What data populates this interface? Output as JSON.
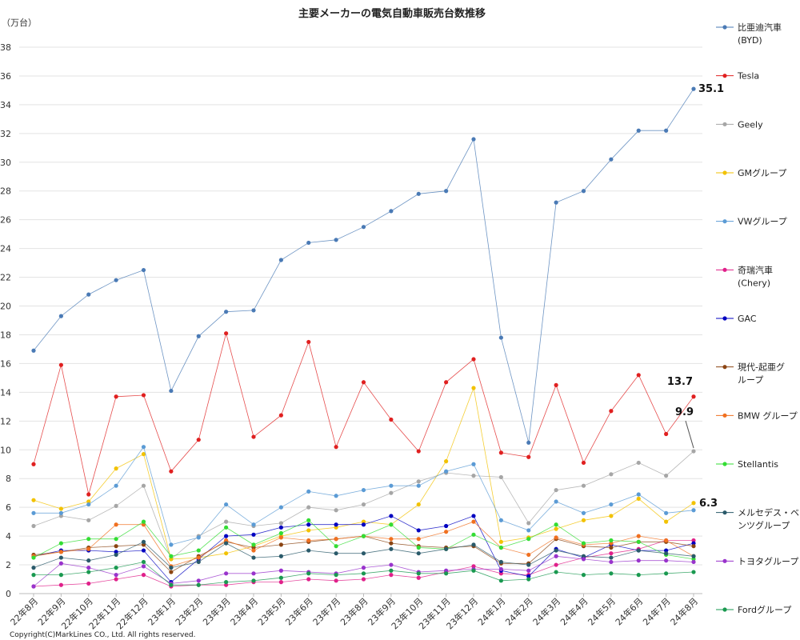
{
  "chart_data": {
    "type": "line",
    "title": "主要メーカーの電気自動車販売台数推移",
    "unit_label": "（万台）",
    "copyright": "Copyright(C)MarkLines CO., Ltd. All rights reserved.",
    "ylim": [
      0,
      38
    ],
    "yticks": [
      "0",
      "2",
      "4",
      "6",
      "8",
      "10",
      "12",
      "14",
      "16",
      "18",
      "20",
      "22",
      "24",
      "26",
      "28",
      "30",
      "32",
      "34",
      "36",
      "38"
    ],
    "grid": true,
    "legend_position": "right",
    "x": [
      "22年8月",
      "22年9月",
      "22年10月",
      "22年11月",
      "22年12月",
      "23年1月",
      "23年2月",
      "23年3月",
      "23年4月",
      "23年5月",
      "23年6月",
      "23年7月",
      "23年8月",
      "23年9月",
      "23年10月",
      "23年11月",
      "23年12月",
      "24年1月",
      "24年2月",
      "24年3月",
      "24年4月",
      "24年5月",
      "24年6月",
      "24年7月",
      "24年8月"
    ],
    "series": [
      {
        "name": "比亜迪汽車",
        "name2": "(BYD)",
        "color": "#4a7ab5",
        "values": [
          16.9,
          19.3,
          20.8,
          21.8,
          22.5,
          14.1,
          17.9,
          19.6,
          19.7,
          23.2,
          24.4,
          24.6,
          25.5,
          26.6,
          27.8,
          28.0,
          31.6,
          17.8,
          10.5,
          27.2,
          28.0,
          30.2,
          32.2,
          32.2,
          35.1
        ]
      },
      {
        "name": "Tesla",
        "name2": "",
        "color": "#e02020",
        "values": [
          9.0,
          15.9,
          6.9,
          13.7,
          13.8,
          8.5,
          10.7,
          18.1,
          10.9,
          12.4,
          17.5,
          10.2,
          14.7,
          12.1,
          9.9,
          14.7,
          16.3,
          9.8,
          9.5,
          14.5,
          9.1,
          12.7,
          15.2,
          11.1,
          13.7
        ]
      },
      {
        "name": "Geely",
        "name2": "",
        "color": "#a6a6a6",
        "values": [
          4.7,
          5.4,
          5.1,
          6.1,
          7.5,
          2.4,
          4.0,
          5.0,
          4.7,
          4.9,
          6.0,
          5.8,
          6.2,
          7.0,
          7.8,
          8.4,
          8.2,
          8.1,
          4.9,
          7.2,
          7.5,
          8.3,
          9.1,
          8.2,
          9.9
        ]
      },
      {
        "name": "GMグループ",
        "name2": "",
        "color": "#f2c200",
        "values": [
          6.5,
          5.9,
          6.4,
          8.7,
          9.7,
          2.4,
          2.5,
          2.8,
          3.3,
          4.0,
          4.4,
          4.6,
          5.0,
          4.8,
          6.2,
          9.2,
          14.3,
          3.6,
          3.9,
          4.5,
          5.1,
          5.4,
          6.6,
          5.0,
          6.3
        ]
      },
      {
        "name": "VWグループ",
        "name2": "",
        "color": "#5b9bd5",
        "values": [
          5.6,
          5.6,
          6.2,
          7.5,
          10.2,
          3.4,
          3.9,
          6.2,
          4.8,
          6.0,
          7.1,
          6.8,
          7.2,
          7.5,
          7.5,
          8.5,
          9.0,
          5.1,
          4.4,
          6.4,
          5.6,
          6.2,
          6.9,
          5.6,
          5.8
        ]
      },
      {
        "name": "奇瑞汽車",
        "name2": "(Chery)",
        "color": "#e0208a",
        "values": [
          0.5,
          0.6,
          0.7,
          1.0,
          1.3,
          0.5,
          0.6,
          0.6,
          0.8,
          0.8,
          1.0,
          0.9,
          1.0,
          1.3,
          1.1,
          1.5,
          1.9,
          1.4,
          1.3,
          2.0,
          2.5,
          2.8,
          3.1,
          3.7,
          3.7
        ]
      },
      {
        "name": "GAC",
        "name2": "",
        "color": "#0000c0",
        "values": [
          2.6,
          3.0,
          3.0,
          2.9,
          3.0,
          0.8,
          2.4,
          4.0,
          4.1,
          4.6,
          4.8,
          4.8,
          4.8,
          5.4,
          4.4,
          4.7,
          5.4,
          1.6,
          1.2,
          3.1,
          2.5,
          3.4,
          3.0,
          3.0,
          3.5
        ]
      },
      {
        "name": "現代-起亜グ",
        "name2": "ループ",
        "color": "#8b4513",
        "values": [
          2.7,
          2.9,
          3.2,
          3.3,
          3.4,
          1.5,
          2.6,
          3.6,
          3.2,
          3.4,
          3.6,
          3.8,
          4.0,
          3.5,
          3.3,
          3.2,
          3.3,
          2.1,
          2.1,
          3.8,
          3.3,
          3.2,
          3.6,
          3.6,
          3.3
        ]
      },
      {
        "name": "BMW グループ",
        "name2": "",
        "color": "#f07020",
        "values": [
          2.6,
          2.9,
          3.1,
          4.8,
          4.8,
          1.9,
          2.5,
          3.7,
          3.0,
          3.9,
          3.7,
          3.8,
          4.0,
          3.8,
          3.8,
          4.3,
          5.0,
          3.2,
          2.7,
          3.9,
          3.4,
          3.5,
          4.0,
          3.7,
          2.6
        ]
      },
      {
        "name": "Stellantis",
        "name2": "",
        "color": "#33dd33",
        "values": [
          2.5,
          3.5,
          3.8,
          3.8,
          5.0,
          2.6,
          3.0,
          4.6,
          3.4,
          4.2,
          5.1,
          3.3,
          4.0,
          4.8,
          3.2,
          3.1,
          4.1,
          3.2,
          3.8,
          4.8,
          3.5,
          3.7,
          3.6,
          2.7,
          2.4
        ]
      },
      {
        "name": "メルセデス・ベ",
        "name2": "ンツグループ",
        "color": "#2a5a6a",
        "values": [
          1.8,
          2.5,
          2.3,
          2.7,
          3.6,
          1.8,
          2.2,
          3.5,
          2.5,
          2.6,
          3.0,
          2.8,
          2.8,
          3.1,
          2.8,
          3.1,
          3.4,
          2.2,
          2.0,
          3.0,
          2.6,
          2.5,
          3.0,
          2.8,
          2.6
        ]
      },
      {
        "name": "トヨタグループ",
        "name2": "",
        "color": "#9933cc",
        "values": [
          0.5,
          2.1,
          1.8,
          1.3,
          1.9,
          0.7,
          0.9,
          1.4,
          1.4,
          1.6,
          1.5,
          1.4,
          1.8,
          2.0,
          1.5,
          1.6,
          1.7,
          1.7,
          1.6,
          2.6,
          2.4,
          2.2,
          2.3,
          2.3,
          2.2
        ]
      },
      {
        "name": "Fordグループ",
        "name2": "",
        "color": "#1a9950",
        "values": [
          1.3,
          1.3,
          1.5,
          1.8,
          2.2,
          0.6,
          0.6,
          0.8,
          0.9,
          1.1,
          1.4,
          1.3,
          1.4,
          1.6,
          1.4,
          1.4,
          1.6,
          0.9,
          1.0,
          1.5,
          1.3,
          1.4,
          1.3,
          1.4,
          1.5
        ]
      }
    ],
    "annotations": [
      {
        "text": "35.1",
        "series": "比亜迪汽車"
      },
      {
        "text": "13.7",
        "series": "Tesla"
      },
      {
        "text": "9.9",
        "series": "Geely"
      },
      {
        "text": "6.3",
        "series": "GMグループ"
      }
    ]
  }
}
